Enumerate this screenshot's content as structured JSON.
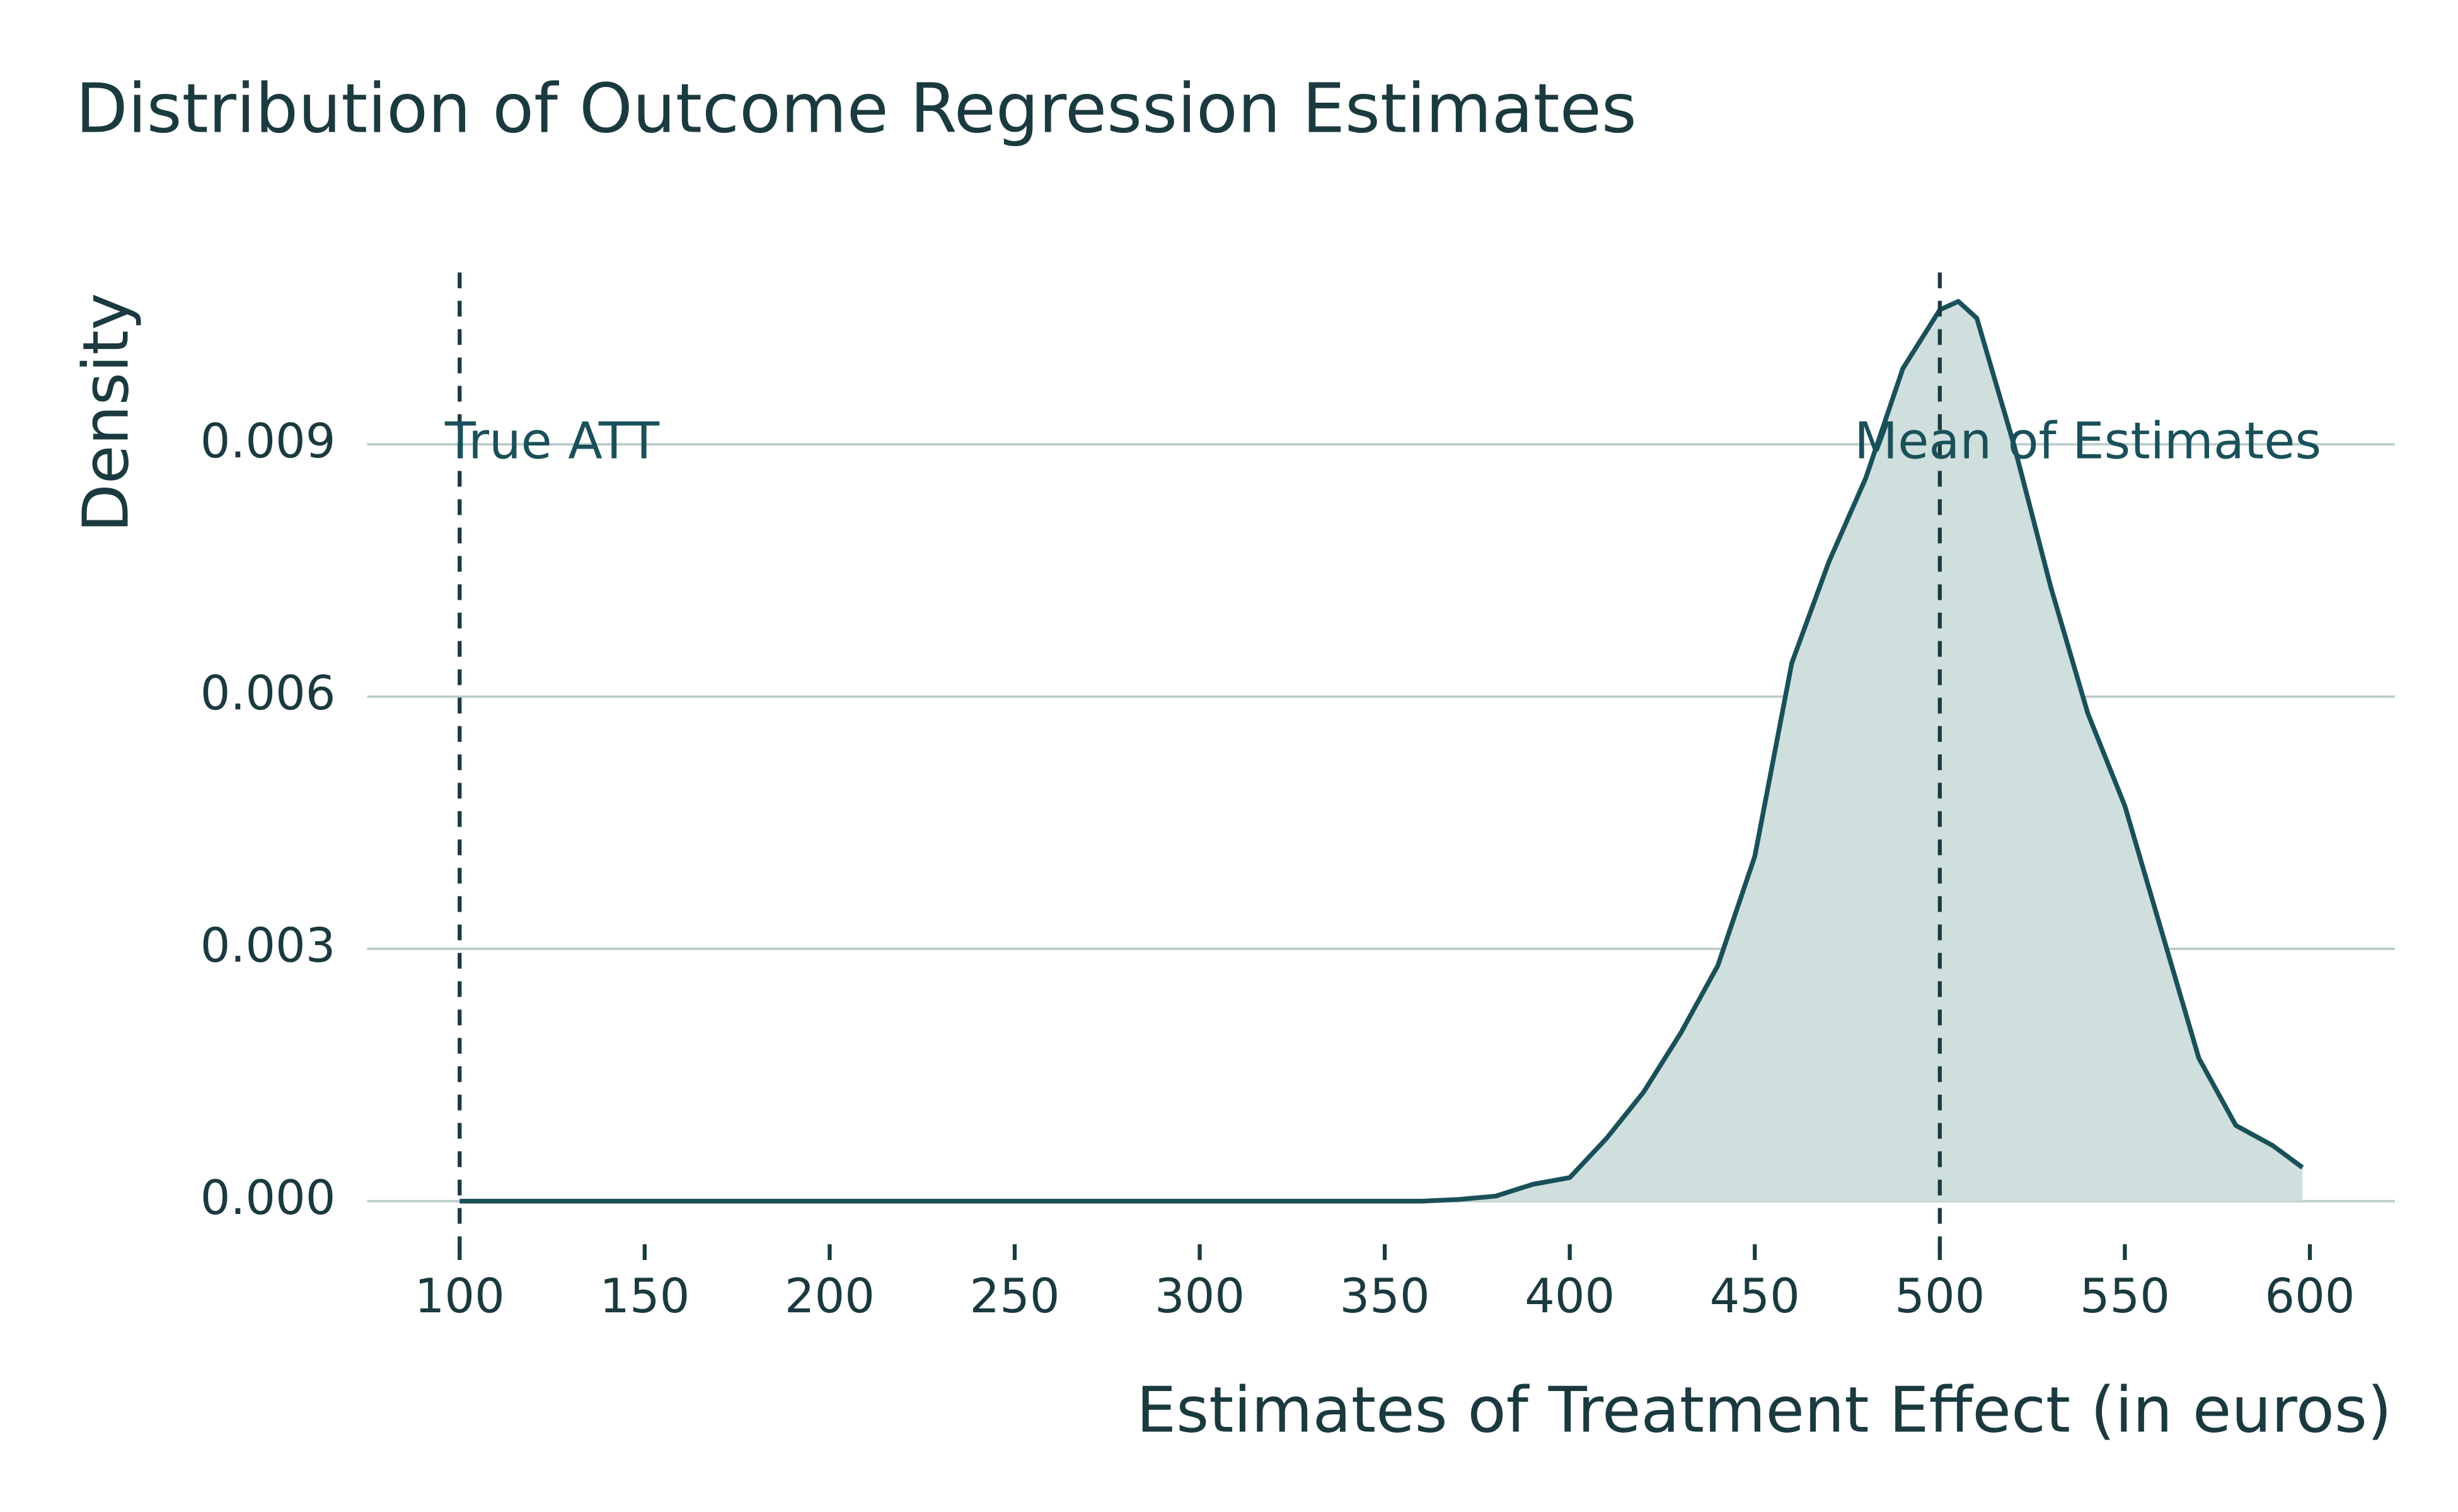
{
  "chart_data": {
    "type": "density",
    "title": "Distribution of Outcome Regression Estimates",
    "x_label": "Estimates of Treatment Effect (in euros)",
    "y_label": "Density",
    "x": [
      100,
      150,
      200,
      250,
      300,
      350,
      360,
      370,
      380,
      390,
      400,
      410,
      420,
      430,
      440,
      450,
      460,
      470,
      480,
      490,
      500,
      505,
      510,
      520,
      530,
      540,
      550,
      560,
      570,
      580,
      590,
      598
    ],
    "values": [
      0,
      0,
      0,
      0,
      0,
      0,
      0,
      2e-05,
      6e-05,
      0.0002,
      0.00028,
      0.00075,
      0.0013,
      0.002,
      0.0028,
      0.0041,
      0.0064,
      0.0076,
      0.0086,
      0.0099,
      0.0106,
      0.0107,
      0.0105,
      0.009,
      0.0073,
      0.0058,
      0.0047,
      0.0032,
      0.0017,
      0.0009,
      0.00066,
      0.0004
    ],
    "color": "#1a5059",
    "fill": "#cfdfdd",
    "xlim": [
      75,
      623
    ],
    "ylim": [
      -0.0007,
      0.0111
    ],
    "xticks": [
      100,
      150,
      200,
      250,
      300,
      350,
      400,
      450,
      500,
      550,
      600
    ],
    "yticks": [
      {
        "value": 0,
        "label": "0.000"
      },
      {
        "value": 0.003,
        "label": "0.003"
      },
      {
        "value": 0.006,
        "label": "0.006"
      },
      {
        "value": 0.009,
        "label": "0.009"
      }
    ],
    "grid": true,
    "vlines": [
      100,
      500
    ],
    "annotations": [
      {
        "text": "True ATT",
        "x": 125,
        "y": 0.009
      },
      {
        "text": "Mean of Estimates",
        "x": 540,
        "y": 0.009
      }
    ]
  }
}
